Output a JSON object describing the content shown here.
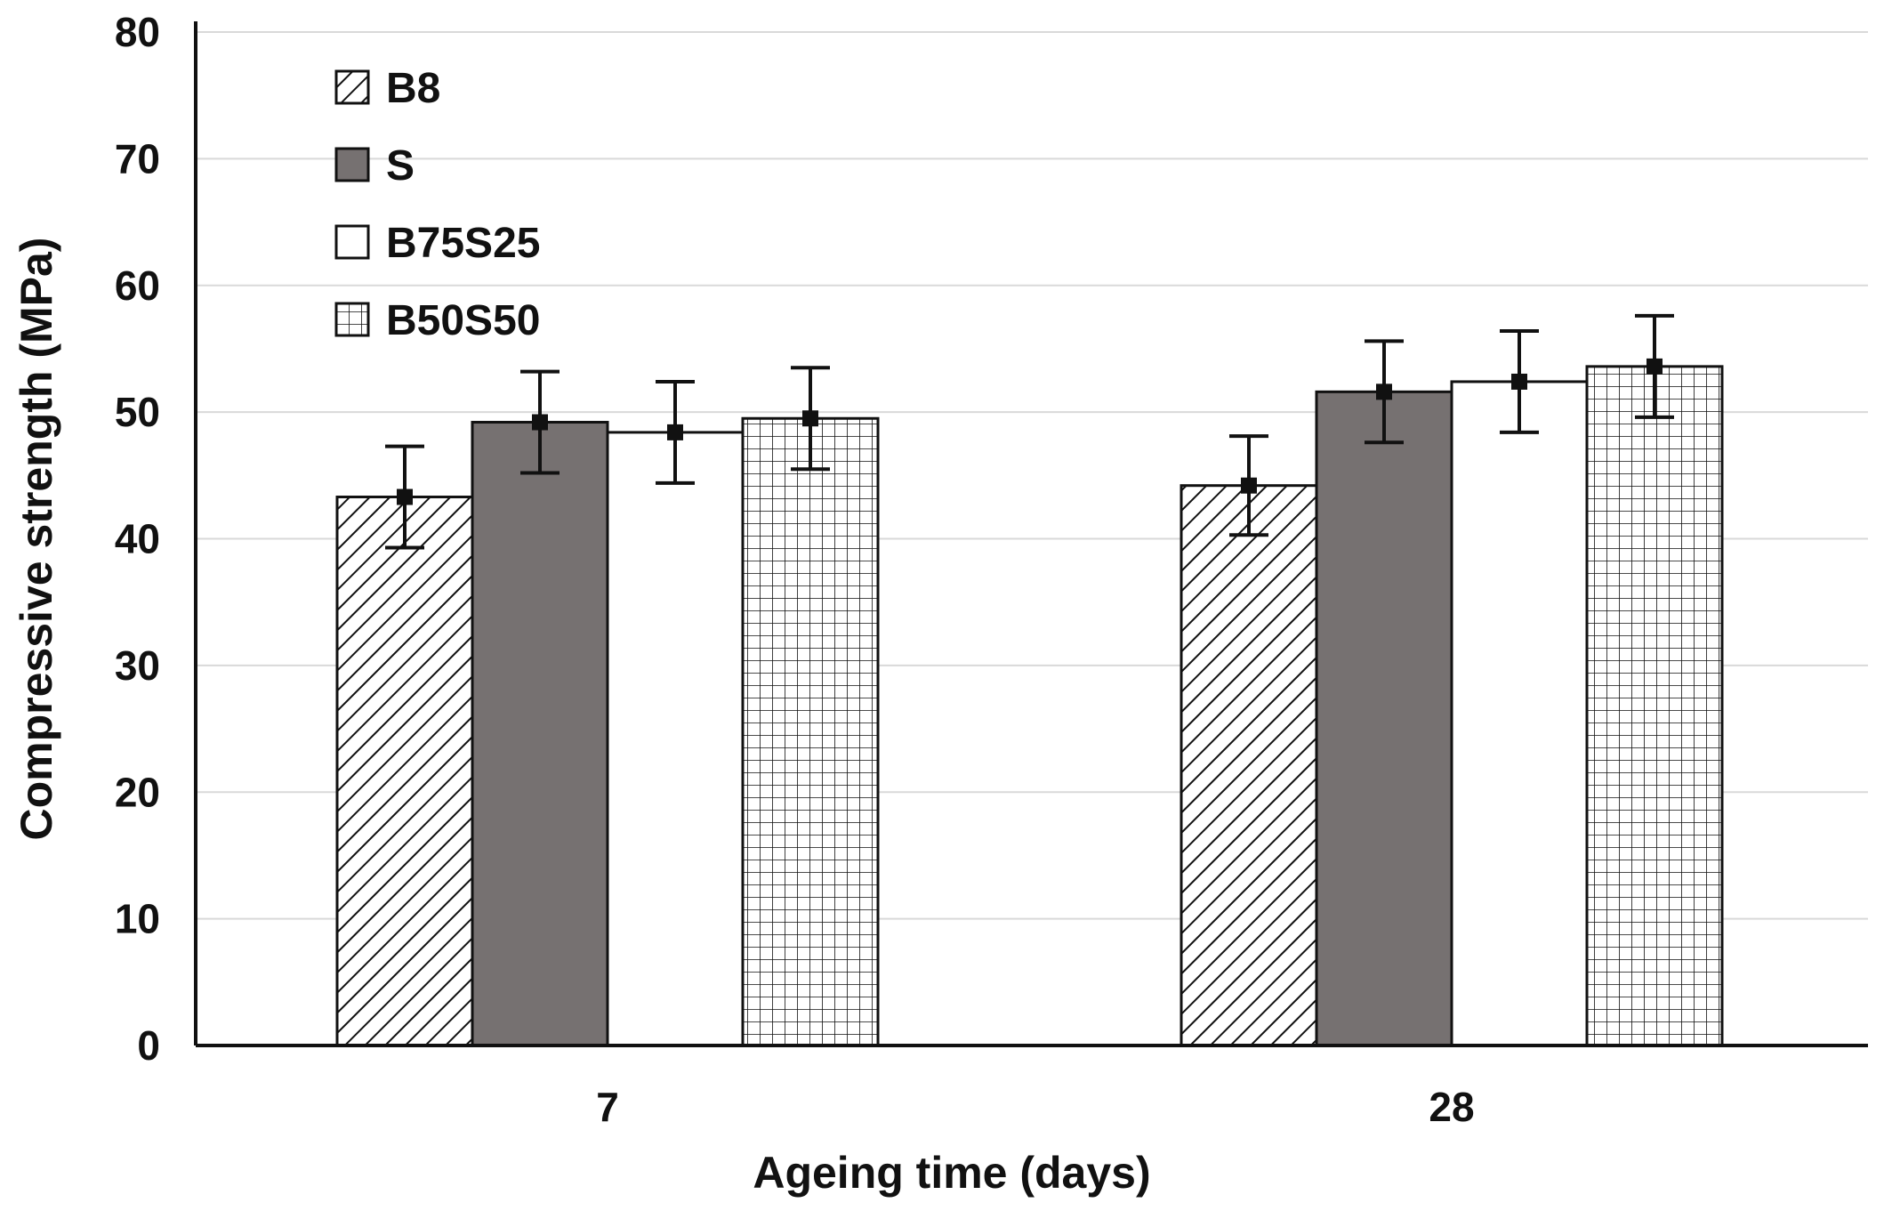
{
  "chart_data": {
    "type": "bar",
    "title": "",
    "xlabel": "Ageing time (days)",
    "ylabel": "Compressive strength (MPa)",
    "ylim": [
      0,
      80
    ],
    "yticks": [
      "0",
      "10",
      "20",
      "30",
      "40",
      "50",
      "60",
      "70",
      "80"
    ],
    "categories": [
      "7",
      "28"
    ],
    "grid": true,
    "legend_position": "top-left",
    "series": [
      {
        "name": "B8",
        "pattern": "diagonal-hatch",
        "values": [
          43.3,
          44.2
        ],
        "errors": [
          4.0,
          3.9
        ]
      },
      {
        "name": "S",
        "pattern": "solid",
        "color": "#767171",
        "values": [
          49.2,
          51.6
        ],
        "errors": [
          4.0,
          4.0
        ]
      },
      {
        "name": "B75S25",
        "pattern": "none",
        "color": "#ffffff",
        "values": [
          48.4,
          52.4
        ],
        "errors": [
          4.0,
          4.0
        ]
      },
      {
        "name": "B50S50",
        "pattern": "grid-hatch",
        "values": [
          49.5,
          53.6
        ],
        "errors": [
          4.0,
          4.0
        ]
      }
    ]
  }
}
